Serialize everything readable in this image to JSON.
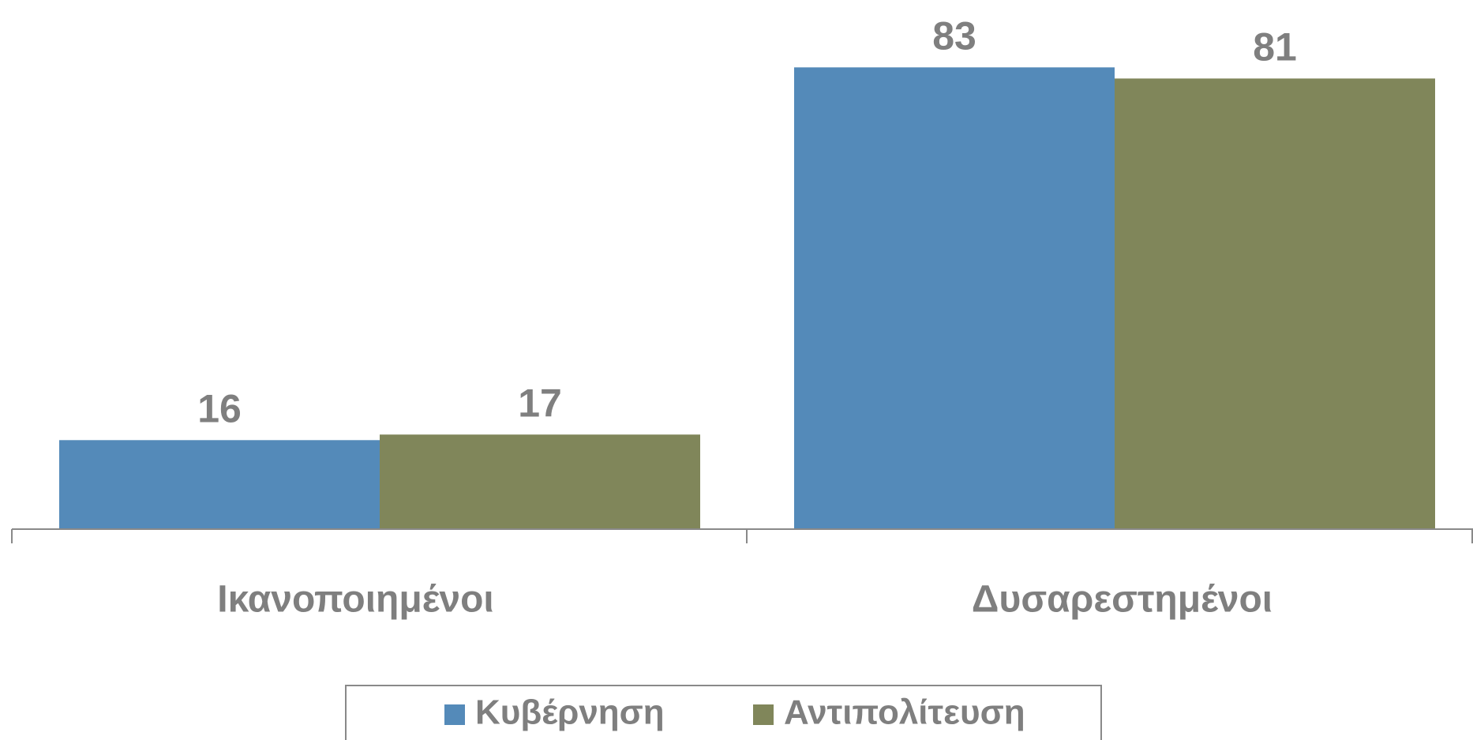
{
  "chart_data": {
    "type": "bar",
    "categories": [
      "Ικανοποιημένοι",
      "Δυσαρεστημένοι"
    ],
    "series": [
      {
        "name": "Κυβέρνηση",
        "color": "#548ab9",
        "values": [
          16,
          83
        ]
      },
      {
        "name": "Αντιπολίτευση",
        "color": "#80865a",
        "values": [
          17,
          81
        ]
      }
    ],
    "ylim": [
      0,
      90
    ],
    "legend": "bottom"
  }
}
